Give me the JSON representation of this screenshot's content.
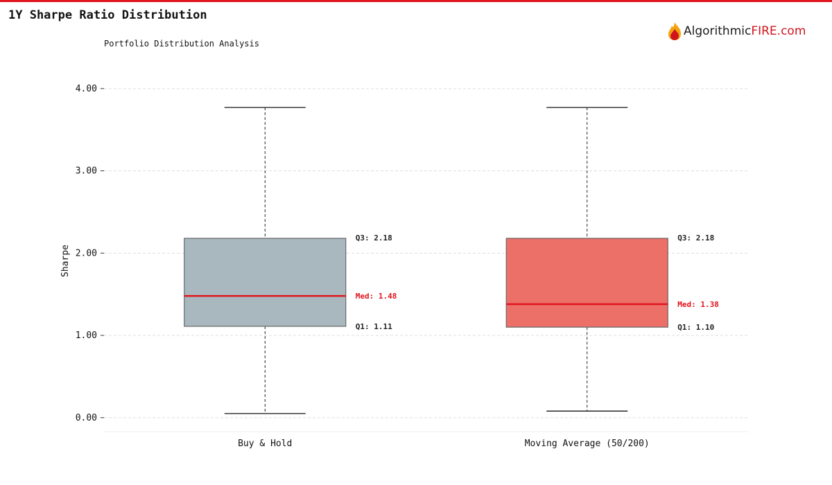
{
  "header": {
    "title": "1Y Sharpe Ratio Distribution",
    "subtitle": "Portfolio Distribution Analysis",
    "logo": {
      "text_main": "Algorithmic",
      "text_accent": "FIRE.com",
      "accent_color": "#d0141e"
    }
  },
  "chart_data": {
    "type": "box",
    "ylabel": "Sharpe",
    "ylim": [
      -0.17,
      4.15
    ],
    "yticks": [
      0,
      1,
      2,
      3,
      4
    ],
    "ytick_labels": [
      "0.00",
      "1.00",
      "2.00",
      "3.00",
      "4.00"
    ],
    "grid": true,
    "categories": [
      "Buy & Hold",
      "Moving Average (50/200)"
    ],
    "boxes": [
      {
        "category": "Buy & Hold",
        "min": 0.05,
        "q1": 1.11,
        "median": 1.48,
        "q3": 2.18,
        "max": 3.77,
        "color": "#a9b8bf",
        "labels": {
          "q3": "Q3: 2.18",
          "median": "Med: 1.48",
          "q1": "Q1: 1.11"
        }
      },
      {
        "category": "Moving Average (50/200)",
        "min": 0.08,
        "q1": 1.1,
        "median": 1.38,
        "q3": 2.18,
        "max": 3.77,
        "color": "#ec6f68",
        "labels": {
          "q3": "Q3: 2.18",
          "median": "Med: 1.38",
          "q1": "Q1: 1.10"
        }
      }
    ],
    "median_color": "#e0141e"
  }
}
